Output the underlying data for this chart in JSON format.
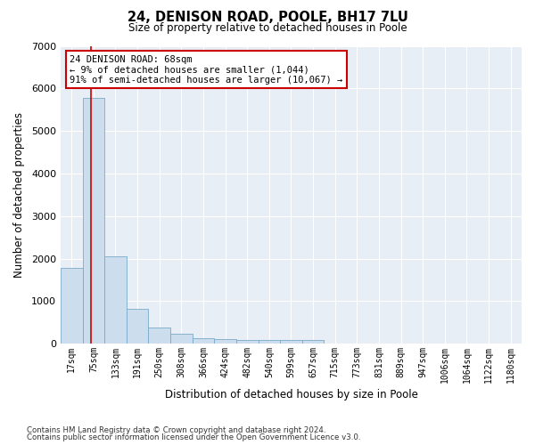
{
  "title": "24, DENISON ROAD, POOLE, BH17 7LU",
  "subtitle": "Size of property relative to detached houses in Poole",
  "xlabel": "Distribution of detached houses by size in Poole",
  "ylabel": "Number of detached properties",
  "bar_color": "#ccdded",
  "bar_edge_color": "#7aaac8",
  "background_color": "#e8eef5",
  "bins": [
    "17sqm",
    "75sqm",
    "133sqm",
    "191sqm",
    "250sqm",
    "308sqm",
    "366sqm",
    "424sqm",
    "482sqm",
    "540sqm",
    "599sqm",
    "657sqm",
    "715sqm",
    "773sqm",
    "831sqm",
    "889sqm",
    "947sqm",
    "1006sqm",
    "1064sqm",
    "1122sqm",
    "1180sqm"
  ],
  "values": [
    1780,
    5780,
    2060,
    820,
    370,
    230,
    130,
    110,
    80,
    80,
    80,
    80,
    0,
    0,
    0,
    0,
    0,
    0,
    0,
    0
  ],
  "ylim": [
    0,
    7000
  ],
  "annotation_line1": "24 DENISON ROAD: 68sqm",
  "annotation_line2": "← 9% of detached houses are smaller (1,044)",
  "annotation_line3": "91% of semi-detached houses are larger (10,067) →",
  "annotation_box_color": "#ffffff",
  "annotation_box_edge": "#cc0000",
  "vline_color": "#cc0000",
  "footer1": "Contains HM Land Registry data © Crown copyright and database right 2024.",
  "footer2": "Contains public sector information licensed under the Open Government Licence v3.0."
}
